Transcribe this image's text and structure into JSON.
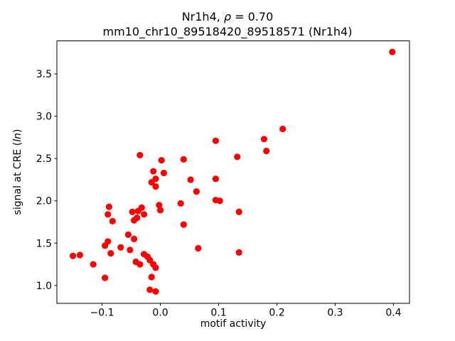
{
  "title": {
    "line1_prefix": "Nr1h4, ",
    "line1_rho": "ρ",
    "line1_suffix": " = 0.70",
    "line2": "mm10_chr10_89518420_89518571 (Nr1h4)"
  },
  "axes_labels": {
    "xlabel": "motif activity",
    "ylabel_prefix": "signal at CRE (",
    "ylabel_italic": "ln",
    "ylabel_suffix": ")"
  },
  "chart_data": {
    "type": "scatter",
    "title": "Nr1h4, ρ = 0.70\nmm10_chr10_89518420_89518571 (Nr1h4)",
    "xlabel": "motif activity",
    "ylabel": "signal at CRE (ln)",
    "xlim": [
      -0.1775,
      0.4275
    ],
    "ylim": [
      0.789,
      3.891
    ],
    "grid": false,
    "legend": "none",
    "marker_color": "#ff0000",
    "xticks": [
      {
        "value": -0.1,
        "label": "−0.1"
      },
      {
        "value": 0.0,
        "label": "0.0"
      },
      {
        "value": 0.1,
        "label": "0.1"
      },
      {
        "value": 0.2,
        "label": "0.2"
      },
      {
        "value": 0.3,
        "label": "0.3"
      },
      {
        "value": 0.4,
        "label": "0.4"
      }
    ],
    "yticks": [
      {
        "value": 1.0,
        "label": "1.0"
      },
      {
        "value": 1.5,
        "label": "1.5"
      },
      {
        "value": 2.0,
        "label": "2.0"
      },
      {
        "value": 2.5,
        "label": "2.5"
      },
      {
        "value": 3.0,
        "label": "3.0"
      },
      {
        "value": 3.5,
        "label": "3.5"
      }
    ],
    "points": [
      [
        0.398,
        3.76
      ],
      [
        0.21,
        2.85
      ],
      [
        0.178,
        2.73
      ],
      [
        0.182,
        2.59
      ],
      [
        0.095,
        2.71
      ],
      [
        0.132,
        2.52
      ],
      [
        -0.035,
        2.54
      ],
      [
        0.002,
        2.48
      ],
      [
        0.04,
        2.49
      ],
      [
        -0.012,
        2.35
      ],
      [
        0.006,
        2.33
      ],
      [
        -0.008,
        2.26
      ],
      [
        -0.015,
        2.22
      ],
      [
        0.095,
        2.26
      ],
      [
        0.052,
        2.25
      ],
      [
        -0.008,
        2.17
      ],
      [
        0.062,
        2.11
      ],
      [
        0.095,
        2.01
      ],
      [
        0.102,
        2.0
      ],
      [
        0.135,
        1.87
      ],
      [
        -0.088,
        1.93
      ],
      [
        -0.09,
        1.84
      ],
      [
        -0.082,
        1.76
      ],
      [
        -0.048,
        1.87
      ],
      [
        -0.032,
        1.92
      ],
      [
        -0.038,
        1.88
      ],
      [
        -0.028,
        1.84
      ],
      [
        -0.002,
        1.95
      ],
      [
        0.0,
        1.89
      ],
      [
        0.035,
        1.97
      ],
      [
        0.04,
        1.72
      ],
      [
        -0.055,
        1.6
      ],
      [
        -0.045,
        1.55
      ],
      [
        -0.04,
        1.8
      ],
      [
        -0.045,
        1.77
      ],
      [
        -0.09,
        1.52
      ],
      [
        -0.095,
        1.47
      ],
      [
        -0.085,
        1.38
      ],
      [
        -0.068,
        1.45
      ],
      [
        -0.052,
        1.42
      ],
      [
        -0.15,
        1.35
      ],
      [
        -0.138,
        1.36
      ],
      [
        -0.115,
        1.25
      ],
      [
        -0.095,
        1.09
      ],
      [
        -0.042,
        1.28
      ],
      [
        -0.035,
        1.25
      ],
      [
        -0.028,
        1.37
      ],
      [
        -0.022,
        1.34
      ],
      [
        -0.018,
        1.3
      ],
      [
        -0.012,
        1.25
      ],
      [
        -0.008,
        1.21
      ],
      [
        -0.015,
        1.1
      ],
      [
        -0.018,
        0.95
      ],
      [
        -0.008,
        0.93
      ],
      [
        0.065,
        1.44
      ],
      [
        0.135,
        1.39
      ]
    ]
  }
}
